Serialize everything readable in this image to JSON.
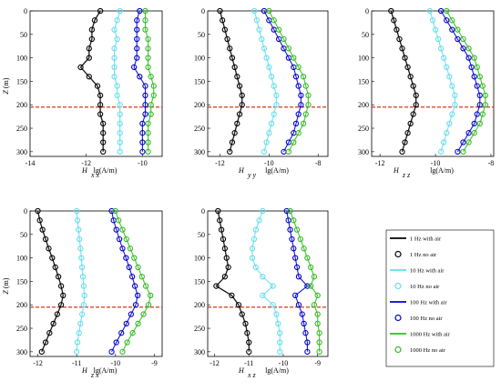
{
  "legend": [
    {
      "label": "1 Hz with air",
      "color": "#000000",
      "kind": "line"
    },
    {
      "label": "1 Hz no air",
      "color": "#000000",
      "kind": "marker"
    },
    {
      "label": "10 Hz with air",
      "color": "#66ddee",
      "kind": "line"
    },
    {
      "label": "10 Hz no air",
      "color": "#66ddee",
      "kind": "marker"
    },
    {
      "label": "100 Hz with air",
      "color": "#0000cc",
      "kind": "line"
    },
    {
      "label": "100 Hz no air",
      "color": "#0000cc",
      "kind": "marker"
    },
    {
      "label": "1000 Hz with air",
      "color": "#33bb22",
      "kind": "line"
    },
    {
      "label": "1000 Hz no air",
      "color": "#33bb22",
      "kind": "marker"
    }
  ],
  "chart_data": [
    {
      "type": "line",
      "name": "H xx",
      "xlabel": "lg(A/m)",
      "ylabel": "Z (m)",
      "xticks": [
        -14,
        -12,
        -10
      ],
      "xlim": [
        -14,
        -9.3
      ],
      "yticks": [
        0,
        50,
        100,
        150,
        200,
        250,
        300
      ],
      "ylim": [
        0,
        310
      ],
      "y_reversed": true,
      "dashed_line_z": 205,
      "z": [
        0,
        20,
        40,
        60,
        80,
        100,
        120,
        140,
        160,
        180,
        200,
        220,
        240,
        260,
        280,
        300
      ],
      "series": [
        {
          "name": "1 Hz",
          "values": [
            -11.5,
            -11.7,
            -11.8,
            -11.8,
            -11.9,
            -11.9,
            -12.2,
            -11.9,
            -11.6,
            -11.5,
            -11.5,
            -11.5,
            -11.4,
            -11.4,
            -11.4,
            -11.4
          ]
        },
        {
          "name": "10 Hz",
          "values": [
            -10.8,
            -10.9,
            -11.0,
            -10.9,
            -11.0,
            -11.0,
            -11.0,
            -11.0,
            -10.9,
            -10.9,
            -10.8,
            -10.8,
            -10.8,
            -10.8,
            -10.8,
            -10.8
          ]
        },
        {
          "name": "100 Hz",
          "values": [
            -10.1,
            -10.2,
            -10.2,
            -10.2,
            -10.2,
            -10.2,
            -10.3,
            -10.1,
            -9.9,
            -9.9,
            -9.9,
            -9.9,
            -10.0,
            -10.0,
            -10.0,
            -10.0
          ]
        },
        {
          "name": "1000 Hz",
          "values": [
            -9.9,
            -9.9,
            -9.9,
            -9.8,
            -9.8,
            -9.8,
            -9.8,
            -9.7,
            -9.6,
            -9.6,
            -9.7,
            -9.7,
            -9.8,
            -9.8,
            -9.8,
            -9.8
          ]
        }
      ]
    },
    {
      "type": "line",
      "name": "H yy",
      "xlabel": "lg(A/m)",
      "ylabel": "",
      "xticks": [
        -12,
        -10,
        -8
      ],
      "xlim": [
        -12.5,
        -7.6
      ],
      "yticks": [
        0,
        50,
        100,
        150,
        200,
        250,
        300
      ],
      "ylim": [
        0,
        310
      ],
      "y_reversed": true,
      "dashed_line_z": 205,
      "z": [
        0,
        20,
        40,
        60,
        80,
        100,
        120,
        140,
        160,
        180,
        200,
        220,
        240,
        260,
        280,
        300
      ],
      "series": [
        {
          "name": "1 Hz",
          "values": [
            -12.0,
            -11.9,
            -11.8,
            -11.7,
            -11.6,
            -11.5,
            -11.4,
            -11.3,
            -11.2,
            -11.1,
            -11.1,
            -11.2,
            -11.3,
            -11.4,
            -11.5,
            -11.6
          ]
        },
        {
          "name": "10 Hz",
          "values": [
            -10.6,
            -10.5,
            -10.4,
            -10.3,
            -10.2,
            -10.1,
            -10.0,
            -9.9,
            -9.8,
            -9.7,
            -9.7,
            -9.8,
            -9.9,
            -10.0,
            -10.1,
            -10.2
          ]
        },
        {
          "name": "100 Hz",
          "values": [
            -10.2,
            -10.0,
            -9.8,
            -9.6,
            -9.4,
            -9.2,
            -9.0,
            -8.9,
            -8.8,
            -8.7,
            -8.7,
            -8.8,
            -8.9,
            -9.0,
            -9.2,
            -9.4
          ]
        },
        {
          "name": "1000 Hz",
          "values": [
            -10.0,
            -9.8,
            -9.6,
            -9.4,
            -9.2,
            -9.0,
            -8.8,
            -8.6,
            -8.5,
            -8.4,
            -8.4,
            -8.5,
            -8.6,
            -8.8,
            -9.0,
            -9.2
          ]
        }
      ]
    },
    {
      "type": "line",
      "name": "H zz",
      "xlabel": "lg(A/m)",
      "ylabel": "",
      "xticks": [
        -12,
        -10,
        -8
      ],
      "xlim": [
        -12.3,
        -7.9
      ],
      "yticks": [
        0,
        50,
        100,
        150,
        200,
        250,
        300
      ],
      "ylim": [
        0,
        310
      ],
      "y_reversed": true,
      "dashed_line_z": 205,
      "z": [
        0,
        20,
        40,
        60,
        80,
        100,
        120,
        140,
        160,
        180,
        200,
        220,
        240,
        260,
        280,
        300
      ],
      "series": [
        {
          "name": "1 Hz",
          "values": [
            -11.6,
            -11.5,
            -11.4,
            -11.3,
            -11.2,
            -11.1,
            -11.0,
            -10.9,
            -10.8,
            -10.7,
            -10.7,
            -10.8,
            -10.9,
            -11.0,
            -11.1,
            -11.2
          ]
        },
        {
          "name": "10 Hz",
          "values": [
            -10.2,
            -10.1,
            -10.0,
            -9.9,
            -9.8,
            -9.7,
            -9.6,
            -9.5,
            -9.4,
            -9.3,
            -9.3,
            -9.4,
            -9.5,
            -9.6,
            -9.7,
            -9.8
          ]
        },
        {
          "name": "100 Hz",
          "values": [
            -9.8,
            -9.6,
            -9.4,
            -9.2,
            -9.0,
            -8.8,
            -8.7,
            -8.6,
            -8.5,
            -8.4,
            -8.4,
            -8.5,
            -8.6,
            -8.8,
            -9.0,
            -9.2
          ]
        },
        {
          "name": "1000 Hz",
          "values": [
            -9.6,
            -9.4,
            -9.2,
            -9.0,
            -8.8,
            -8.6,
            -8.5,
            -8.4,
            -8.3,
            -8.2,
            -8.2,
            -8.3,
            -8.4,
            -8.6,
            -8.8,
            -9.0
          ]
        }
      ]
    },
    {
      "type": "line",
      "name": "H zx",
      "xlabel": "lg(A/m)",
      "ylabel": "Z (m)",
      "xticks": [
        -12,
        -11,
        -10,
        -9
      ],
      "xlim": [
        -12.2,
        -8.8
      ],
      "yticks": [
        0,
        50,
        100,
        150,
        200,
        250,
        300
      ],
      "ylim": [
        0,
        310
      ],
      "y_reversed": true,
      "dashed_line_z": 205,
      "z": [
        0,
        20,
        40,
        60,
        80,
        100,
        120,
        140,
        160,
        180,
        200,
        220,
        240,
        260,
        280,
        300
      ],
      "series": [
        {
          "name": "1 Hz",
          "values": [
            -12.0,
            -11.95,
            -11.88,
            -11.8,
            -11.72,
            -11.63,
            -11.55,
            -11.47,
            -11.4,
            -11.35,
            -11.4,
            -11.5,
            -11.6,
            -11.7,
            -11.8,
            -11.9
          ]
        },
        {
          "name": "10 Hz",
          "values": [
            -11.0,
            -10.98,
            -10.95,
            -10.93,
            -10.9,
            -10.88,
            -10.86,
            -10.84,
            -10.82,
            -10.8,
            -10.82,
            -10.86,
            -10.9,
            -10.94,
            -10.98,
            -11.0
          ]
        },
        {
          "name": "100 Hz",
          "values": [
            -10.1,
            -10.05,
            -9.98,
            -9.9,
            -9.82,
            -9.73,
            -9.65,
            -9.57,
            -9.5,
            -9.43,
            -9.48,
            -9.6,
            -9.72,
            -9.85,
            -9.98,
            -10.1
          ]
        },
        {
          "name": "1000 Hz",
          "values": [
            -10.0,
            -9.92,
            -9.82,
            -9.72,
            -9.62,
            -9.52,
            -9.42,
            -9.32,
            -9.22,
            -9.1,
            -9.15,
            -9.28,
            -9.42,
            -9.56,
            -9.7,
            -9.82
          ]
        }
      ]
    },
    {
      "type": "line",
      "name": "H xz",
      "xlabel": "lg(A/m)",
      "ylabel": "",
      "xticks": [
        -12,
        -11,
        -10,
        -9
      ],
      "xlim": [
        -12.2,
        -8.7
      ],
      "yticks": [
        0,
        50,
        100,
        150,
        200,
        250,
        300
      ],
      "ylim": [
        0,
        310
      ],
      "y_reversed": true,
      "dashed_line_z": 205,
      "z": [
        0,
        20,
        40,
        60,
        80,
        100,
        120,
        140,
        160,
        180,
        200,
        220,
        240,
        260,
        280,
        300
      ],
      "series": [
        {
          "name": "1 Hz",
          "values": [
            -11.9,
            -11.85,
            -11.8,
            -11.75,
            -11.7,
            -11.65,
            -11.6,
            -11.7,
            -11.95,
            -11.5,
            -11.3,
            -11.2,
            -11.1,
            -11.05,
            -11.0,
            -11.0
          ]
        },
        {
          "name": "10 Hz",
          "values": [
            -10.6,
            -10.7,
            -10.8,
            -10.85,
            -10.9,
            -10.9,
            -10.8,
            -10.6,
            -10.3,
            -10.6,
            -10.3,
            -10.2,
            -10.15,
            -10.1,
            -10.1,
            -10.1
          ]
        },
        {
          "name": "100 Hz",
          "values": [
            -9.9,
            -9.85,
            -9.8,
            -9.75,
            -9.7,
            -9.65,
            -9.6,
            -9.55,
            -9.3,
            -9.65,
            -9.55,
            -9.45,
            -9.4,
            -9.35,
            -9.3,
            -9.3
          ]
        },
        {
          "name": "1000 Hz",
          "values": [
            -9.8,
            -9.7,
            -9.6,
            -9.5,
            -9.4,
            -9.3,
            -9.2,
            -9.1,
            -9.2,
            -9.0,
            -9.1,
            -9.0,
            -9.0,
            -8.95,
            -8.95,
            -8.95
          ]
        }
      ]
    }
  ]
}
